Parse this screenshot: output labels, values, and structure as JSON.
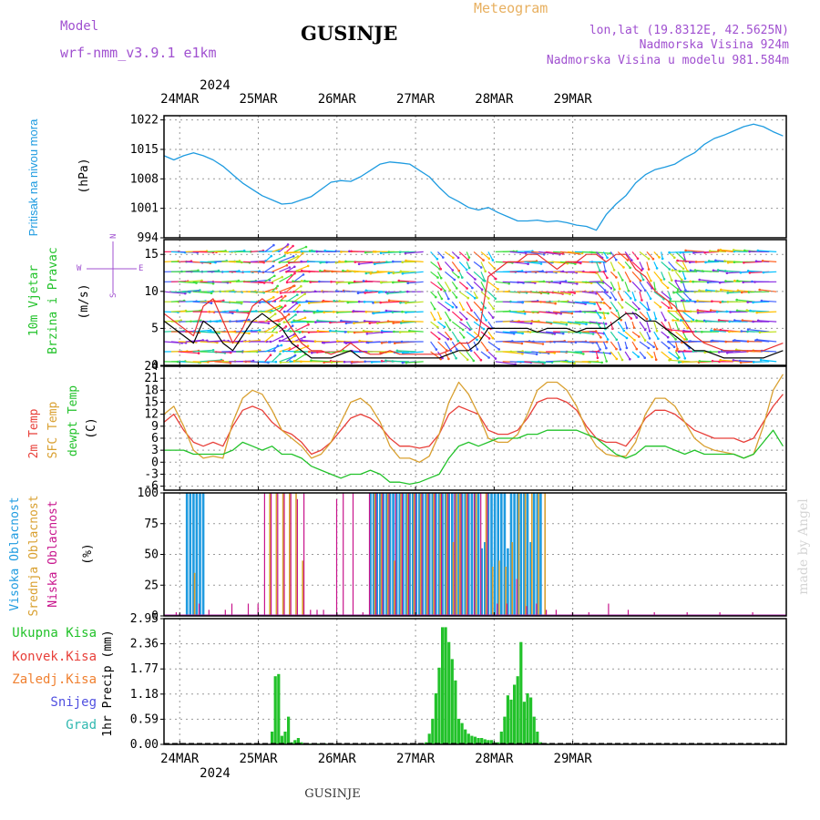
{
  "header": {
    "model_label": "Model",
    "model_value": "wrf-nmm_v3.9.1 e1km",
    "station_title": "GUSINJE",
    "product": "Meteogram",
    "lonlat": "lon,lat (19.8312E, 42.5625N)",
    "elevation": "Nadmorska Visina 924m",
    "model_elevation": "Nadmorska Visina u modelu 981.584m",
    "watermark": "made by Angel",
    "footer_station": "GUSINJE"
  },
  "colors": {
    "pressure": "#1e9be0",
    "temp2m": "#e8403a",
    "sfc_temp": "#d9a030",
    "dewpt": "#22c22a",
    "cloud_high": "#1e9be0",
    "cloud_mid": "#d9a030",
    "cloud_low": "#c8148c",
    "precip": "#22c22a",
    "model_purple": "#a050d0",
    "meteogram_orange": "#e8b060",
    "wind_label": "#22c22a",
    "compass_purple": "#a050d0"
  },
  "time_axis": {
    "top_year": "2024",
    "bottom_year": "2024",
    "days": [
      "24MAR",
      "25MAR",
      "26MAR",
      "27MAR",
      "28MAR",
      "29MAR"
    ]
  },
  "chart_data": [
    {
      "type": "line",
      "panel": "pressure",
      "ylabel": "Pritisak na nivou mora",
      "units": "(hPa)",
      "ylim": [
        994,
        1023
      ],
      "yticks": [
        994,
        1001,
        1008,
        1015,
        1022
      ],
      "x": [
        0,
        3,
        6,
        9,
        12,
        15,
        18,
        21,
        24,
        27,
        30,
        33,
        36,
        39,
        42,
        45,
        48,
        51,
        54,
        57,
        60,
        63,
        66,
        69,
        72,
        75,
        78,
        81,
        84,
        87,
        90,
        93,
        96,
        99,
        102,
        105,
        108,
        111,
        114,
        117,
        120,
        123,
        126,
        129,
        132,
        135,
        138,
        141,
        144,
        147,
        150,
        153,
        156,
        159,
        162,
        165,
        168,
        171,
        174,
        177,
        180,
        183,
        186,
        189
      ],
      "series": [
        {
          "values": [
            1013.5,
            1012.5,
            1013.5,
            1014.2,
            1013.5,
            1012.5,
            1011,
            1009,
            1007,
            1005.5,
            1004,
            1003,
            1002,
            1002.2,
            1003,
            1003.8,
            1005.5,
            1007.2,
            1007.6,
            1007.4,
            1008.5,
            1010,
            1011.5,
            1012,
            1011.8,
            1011.5,
            1010,
            1008.5,
            1006,
            1003.8,
            1002.6,
            1001.2,
            1000.6,
            1001.2,
            1000,
            999,
            998,
            998,
            998.2,
            997.8,
            998,
            997.6,
            997,
            996.7,
            995.8,
            999.5,
            1002,
            1004,
            1007,
            1009,
            1010.2,
            1010.8,
            1011.5,
            1013,
            1014.2,
            1016.2,
            1017.6,
            1018.4,
            1019.4,
            1020.4,
            1021,
            1020.4,
            1019.2,
            1018.2
          ]
        }
      ]
    },
    {
      "type": "line",
      "panel": "wind",
      "ylabel": "10m Vjetar Brzina i Pravac",
      "units": "(m/s)",
      "compass": [
        "W",
        "E",
        "N",
        "S"
      ],
      "ylim": [
        0,
        17
      ],
      "yticks": [
        0,
        5,
        10,
        15
      ],
      "x": [
        0,
        3,
        6,
        9,
        12,
        15,
        18,
        21,
        24,
        27,
        30,
        33,
        36,
        39,
        42,
        45,
        48,
        51,
        54,
        57,
        60,
        63,
        66,
        69,
        72,
        75,
        78,
        81,
        84,
        87,
        90,
        93,
        96,
        99,
        102,
        105,
        108,
        111,
        114,
        117,
        120,
        123,
        126,
        129,
        132,
        135,
        138,
        141,
        144,
        147,
        150,
        153,
        156,
        159,
        162,
        165,
        168,
        171,
        174,
        177,
        180,
        183,
        186,
        189
      ],
      "series": [
        {
          "values": [
            6,
            5,
            4,
            3,
            6,
            5,
            3,
            2,
            4,
            6,
            7,
            6,
            5,
            3,
            2,
            1,
            1,
            1,
            1.5,
            2,
            1,
            1,
            1,
            1,
            1,
            1,
            1,
            1,
            1,
            1.5,
            2,
            2,
            3,
            5,
            5,
            5,
            5,
            5,
            4.5,
            5,
            5,
            5,
            4.5,
            5,
            5,
            5,
            6,
            7,
            7,
            6,
            6,
            5,
            4,
            3,
            2,
            2,
            1.5,
            1,
            1,
            1,
            1,
            1,
            1.5,
            2
          ]
        },
        {
          "values": [
            7,
            6,
            5,
            4,
            8,
            9,
            6,
            3,
            5,
            8,
            9,
            8,
            7,
            5,
            3,
            2,
            2,
            1.5,
            2,
            3,
            2,
            1.5,
            1.5,
            2,
            1.5,
            1.5,
            1.5,
            1.5,
            1.5,
            2,
            3,
            3,
            4,
            12,
            13,
            14,
            14,
            15,
            15,
            14,
            13,
            14,
            14,
            15,
            15,
            14,
            15,
            15,
            13,
            12,
            10,
            9,
            8,
            6,
            4,
            3,
            2.5,
            2,
            2,
            2,
            2,
            2,
            2.5,
            3
          ]
        }
      ]
    },
    {
      "type": "line",
      "panel": "temperature",
      "ylabel": "2m Temp SFC Temp dewpt Temp",
      "units": "(C)",
      "ylim": [
        -7,
        24
      ],
      "yticks": [
        -6,
        -3,
        0,
        3,
        6,
        9,
        12,
        15,
        18,
        21,
        24
      ],
      "x": [
        0,
        3,
        6,
        9,
        12,
        15,
        18,
        21,
        24,
        27,
        30,
        33,
        36,
        39,
        42,
        45,
        48,
        51,
        54,
        57,
        60,
        63,
        66,
        69,
        72,
        75,
        78,
        81,
        84,
        87,
        90,
        93,
        96,
        99,
        102,
        105,
        108,
        111,
        114,
        117,
        120,
        123,
        126,
        129,
        132,
        135,
        138,
        141,
        144,
        147,
        150,
        153,
        156,
        159,
        162,
        165,
        168,
        171,
        174,
        177,
        180,
        183,
        186,
        189
      ],
      "series": [
        {
          "name": "2m Temp",
          "values": [
            10,
            12,
            8,
            5,
            4,
            5,
            4,
            9,
            13,
            14,
            13,
            10,
            8,
            7,
            5,
            2,
            3,
            5,
            8,
            11,
            12,
            11,
            9,
            6,
            4,
            4,
            3.5,
            4,
            7,
            12,
            14,
            13,
            12,
            8,
            7,
            7,
            8,
            11,
            15,
            16,
            16,
            15,
            13,
            9,
            6,
            5,
            5,
            4,
            7,
            11,
            13,
            13,
            12,
            10,
            8,
            7,
            6,
            6,
            6,
            5,
            6,
            10,
            14,
            17
          ]
        },
        {
          "name": "SFC Temp",
          "values": [
            12,
            14,
            9,
            3,
            1,
            1.5,
            1,
            10,
            16,
            18,
            17,
            13,
            8,
            6,
            4,
            1,
            2,
            5,
            10,
            15,
            16,
            14,
            10,
            4,
            1,
            1,
            0,
            1.5,
            7,
            15,
            20,
            17,
            12,
            6,
            5,
            5,
            7,
            12,
            18,
            20,
            20,
            18,
            14,
            8,
            4,
            2,
            1.5,
            1.5,
            5,
            12,
            16,
            16,
            14,
            10,
            6,
            4,
            3,
            2.5,
            2,
            1,
            2,
            9,
            18,
            22
          ]
        },
        {
          "name": "dewpt Temp",
          "values": [
            3,
            3,
            3,
            2,
            2,
            2,
            2,
            3,
            5,
            4,
            3,
            4,
            2,
            2,
            1,
            -1,
            -2,
            -3,
            -4,
            -3,
            -3,
            -2,
            -3,
            -5,
            -5,
            -5.5,
            -5,
            -4,
            -3,
            1,
            4,
            5,
            4,
            5,
            6,
            6,
            6,
            7,
            7,
            8,
            8,
            8,
            8,
            7,
            6,
            4,
            2,
            1,
            2,
            4,
            4,
            4,
            3,
            2,
            3,
            2,
            2,
            2,
            2,
            1,
            2,
            5,
            8,
            4
          ]
        }
      ]
    },
    {
      "type": "bar",
      "panel": "cloud",
      "ylabel": "Visoka Oblacnost Srednja Oblacnost Niska Oblacnost",
      "units": "(%)",
      "ylim": [
        0,
        100
      ],
      "yticks": [
        0,
        25,
        50,
        75,
        100
      ],
      "series": [
        {
          "name": "Visoka Oblacnost",
          "x": [
            7,
            8,
            9,
            10,
            11,
            12,
            63,
            64,
            65,
            66,
            67,
            68,
            69,
            70,
            71,
            72,
            73,
            74,
            75,
            76,
            77,
            78,
            79,
            80,
            81,
            82,
            83,
            84,
            85,
            86,
            87,
            88,
            89,
            90,
            91,
            92,
            93,
            94,
            95,
            96,
            97,
            98,
            99,
            100,
            101,
            102,
            103,
            104,
            105,
            106,
            107,
            108,
            109,
            110,
            111,
            112,
            113,
            114,
            115
          ],
          "values": [
            100,
            100,
            100,
            100,
            100,
            100,
            100,
            100,
            100,
            100,
            100,
            100,
            100,
            100,
            100,
            100,
            100,
            100,
            100,
            100,
            100,
            100,
            100,
            100,
            100,
            100,
            100,
            100,
            100,
            100,
            100,
            100,
            100,
            100,
            100,
            100,
            100,
            100,
            100,
            100,
            55,
            60,
            100,
            100,
            100,
            100,
            100,
            100,
            55,
            100,
            100,
            100,
            100,
            100,
            100,
            60,
            100,
            100,
            100
          ]
        },
        {
          "name": "Srednja Oblacnost",
          "x": [
            9,
            32,
            34,
            36,
            38,
            40,
            42,
            64,
            66,
            68,
            70,
            72,
            74,
            76,
            78,
            80,
            82,
            84,
            86,
            88,
            89,
            90,
            92,
            95,
            98,
            100,
            102,
            104,
            106,
            108,
            110,
            112,
            114,
            116
          ],
          "values": [
            35,
            100,
            100,
            100,
            100,
            100,
            45,
            100,
            100,
            100,
            45,
            100,
            100,
            100,
            100,
            100,
            100,
            100,
            100,
            60,
            100,
            100,
            100,
            100,
            100,
            40,
            45,
            40,
            60,
            100,
            100,
            100,
            100,
            100
          ]
        },
        {
          "name": "Niska Oblacnost",
          "x": [
            4,
            11,
            14,
            19,
            21,
            26,
            29,
            31,
            33,
            35,
            37,
            39,
            41,
            43,
            45,
            47,
            49,
            53,
            55,
            58,
            61,
            63,
            65,
            67,
            69,
            71,
            73,
            75,
            77,
            79,
            81,
            83,
            85,
            87,
            89,
            91,
            93,
            95,
            97,
            99,
            102,
            105,
            108,
            111,
            114,
            117,
            120,
            125,
            130,
            136,
            142,
            150,
            160,
            170,
            180
          ],
          "values": [
            3,
            10,
            5,
            5,
            10,
            10,
            10,
            100,
            100,
            100,
            100,
            100,
            95,
            100,
            5,
            5,
            5,
            95,
            100,
            100,
            3,
            100,
            100,
            100,
            100,
            100,
            100,
            100,
            100,
            100,
            100,
            100,
            100,
            100,
            100,
            100,
            100,
            100,
            100,
            100,
            10,
            10,
            30,
            8,
            10,
            5,
            5,
            3,
            3,
            10,
            5,
            3,
            3,
            3,
            3
          ]
        }
      ]
    },
    {
      "type": "bar",
      "panel": "precip",
      "ylabel": "1hr Precip (mm)",
      "legend": [
        "Ukupna Kisa",
        "Konvek.Kisa",
        "Zaledj.Kisa",
        "Snijeg",
        "Grad"
      ],
      "legend_colors": [
        "#22c22a",
        "#e8403a",
        "#f08030",
        "#5050e0",
        "#30b8b0"
      ],
      "ylim": [
        0,
        2.95
      ],
      "yticks": [
        0,
        0.59,
        1.18,
        1.77,
        2.36,
        2.95
      ],
      "x": [
        33,
        34,
        35,
        36,
        37,
        38,
        39,
        40,
        41,
        42,
        43,
        44,
        45,
        47,
        49,
        80,
        81,
        82,
        83,
        84,
        85,
        86,
        87,
        88,
        89,
        90,
        91,
        92,
        93,
        94,
        95,
        96,
        97,
        98,
        99,
        100,
        101,
        102,
        103,
        104,
        105,
        106,
        107,
        108,
        109,
        110,
        111,
        112,
        113,
        114,
        115,
        116,
        117
      ],
      "values": [
        0.3,
        1.6,
        1.65,
        0.2,
        0.3,
        0.65,
        0.05,
        0.1,
        0.15,
        0.05,
        0.02,
        0.02,
        0.02,
        0.02,
        0.03,
        0.05,
        0.25,
        0.6,
        1.2,
        1.8,
        2.75,
        2.75,
        2.4,
        2.0,
        1.5,
        0.6,
        0.5,
        0.35,
        0.25,
        0.2,
        0.18,
        0.15,
        0.15,
        0.12,
        0.1,
        0.1,
        0.05,
        0.05,
        0.3,
        0.65,
        1.15,
        1.05,
        1.4,
        1.6,
        2.4,
        1.0,
        1.2,
        1.1,
        0.65,
        0.3,
        0.05,
        0.02,
        0.02
      ]
    }
  ]
}
